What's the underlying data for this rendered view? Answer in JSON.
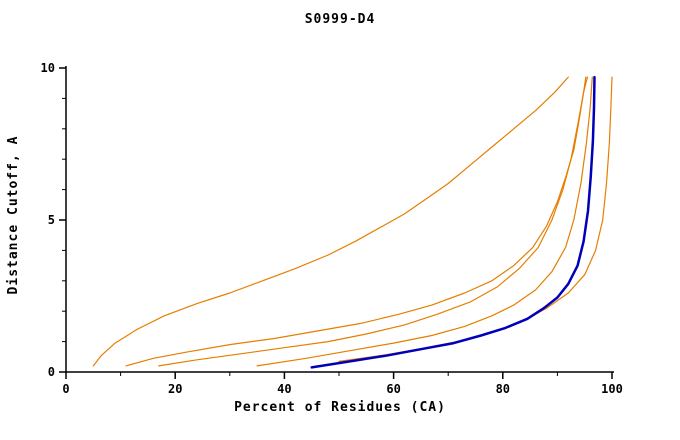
{
  "chart_data": {
    "type": "line",
    "title": "S0999-D4",
    "xlabel": "Percent of Residues (CA)",
    "ylabel": "Distance Cutoff, A",
    "xlim": [
      0,
      100
    ],
    "ylim": [
      0,
      10
    ],
    "x_ticks": [
      0,
      20,
      40,
      60,
      80,
      100
    ],
    "y_ticks": [
      0,
      5,
      10
    ],
    "x_minor_step": 10,
    "y_minor_step": 1,
    "grid": false,
    "legend": "none",
    "axis_color": "#000000",
    "background": "#ffffff",
    "colors": {
      "model_highlight": "#0000bb",
      "other_models": "#e67e00"
    },
    "series": [
      {
        "name": "orange-curve-1",
        "color": "#e67e00",
        "width": 1.2,
        "points": [
          [
            5,
            0.2
          ],
          [
            6.5,
            0.55
          ],
          [
            9,
            0.95
          ],
          [
            13,
            1.4
          ],
          [
            18,
            1.85
          ],
          [
            24,
            2.25
          ],
          [
            30,
            2.6
          ],
          [
            36,
            3.0
          ],
          [
            42,
            3.4
          ],
          [
            48,
            3.85
          ],
          [
            53,
            4.3
          ],
          [
            58,
            4.8
          ],
          [
            62,
            5.2
          ],
          [
            66,
            5.7
          ],
          [
            70,
            6.2
          ],
          [
            74,
            6.8
          ],
          [
            78,
            7.4
          ],
          [
            82,
            8.0
          ],
          [
            86,
            8.6
          ],
          [
            89.5,
            9.2
          ],
          [
            92,
            9.7
          ]
        ]
      },
      {
        "name": "orange-curve-2",
        "color": "#e67e00",
        "width": 1.2,
        "points": [
          [
            11,
            0.2
          ],
          [
            16,
            0.45
          ],
          [
            22,
            0.65
          ],
          [
            30,
            0.9
          ],
          [
            38,
            1.1
          ],
          [
            46,
            1.35
          ],
          [
            54,
            1.6
          ],
          [
            61,
            1.9
          ],
          [
            67,
            2.2
          ],
          [
            73,
            2.6
          ],
          [
            78,
            3.0
          ],
          [
            82,
            3.5
          ],
          [
            85.5,
            4.1
          ],
          [
            88,
            4.8
          ],
          [
            90,
            5.6
          ],
          [
            91.5,
            6.4
          ],
          [
            93,
            7.3
          ],
          [
            94,
            8.3
          ],
          [
            94.8,
            9.2
          ],
          [
            95.2,
            9.7
          ]
        ]
      },
      {
        "name": "orange-curve-3",
        "color": "#e67e00",
        "width": 1.2,
        "points": [
          [
            17,
            0.2
          ],
          [
            24,
            0.4
          ],
          [
            32,
            0.6
          ],
          [
            40,
            0.8
          ],
          [
            48,
            1.0
          ],
          [
            55,
            1.25
          ],
          [
            62,
            1.55
          ],
          [
            68,
            1.9
          ],
          [
            74,
            2.3
          ],
          [
            79,
            2.8
          ],
          [
            83,
            3.4
          ],
          [
            86.5,
            4.1
          ],
          [
            89,
            5.0
          ],
          [
            91,
            6.0
          ],
          [
            92.5,
            7.0
          ],
          [
            93.8,
            8.2
          ],
          [
            94.8,
            9.2
          ],
          [
            95.5,
            9.7
          ]
        ]
      },
      {
        "name": "orange-curve-4",
        "color": "#e67e00",
        "width": 1.2,
        "points": [
          [
            35,
            0.2
          ],
          [
            44,
            0.45
          ],
          [
            52,
            0.7
          ],
          [
            60,
            0.95
          ],
          [
            67,
            1.2
          ],
          [
            73,
            1.5
          ],
          [
            78,
            1.85
          ],
          [
            82,
            2.2
          ],
          [
            86,
            2.7
          ],
          [
            89,
            3.3
          ],
          [
            91.5,
            4.1
          ],
          [
            93,
            5.0
          ],
          [
            94.3,
            6.2
          ],
          [
            95.3,
            7.5
          ],
          [
            96,
            8.7
          ],
          [
            96.4,
            9.7
          ]
        ]
      },
      {
        "name": "orange-curve-5",
        "color": "#e67e00",
        "width": 1.2,
        "points": [
          [
            50,
            0.35
          ],
          [
            58,
            0.55
          ],
          [
            66,
            0.8
          ],
          [
            73,
            1.05
          ],
          [
            79,
            1.35
          ],
          [
            84,
            1.7
          ],
          [
            88,
            2.1
          ],
          [
            92,
            2.6
          ],
          [
            95,
            3.2
          ],
          [
            97,
            4.0
          ],
          [
            98.3,
            5.0
          ],
          [
            99,
            6.2
          ],
          [
            99.5,
            7.5
          ],
          [
            99.8,
            8.7
          ],
          [
            100,
            9.7
          ]
        ]
      },
      {
        "name": "highlighted-model-curve",
        "color": "#0000bb",
        "width": 2.5,
        "points": [
          [
            45,
            0.15
          ],
          [
            52,
            0.35
          ],
          [
            59,
            0.55
          ],
          [
            65,
            0.75
          ],
          [
            71,
            0.95
          ],
          [
            76,
            1.2
          ],
          [
            80.5,
            1.45
          ],
          [
            84.5,
            1.75
          ],
          [
            87.5,
            2.1
          ],
          [
            90,
            2.45
          ],
          [
            92,
            2.9
          ],
          [
            93.7,
            3.5
          ],
          [
            94.8,
            4.3
          ],
          [
            95.6,
            5.3
          ],
          [
            96.1,
            6.4
          ],
          [
            96.5,
            7.6
          ],
          [
            96.7,
            8.7
          ],
          [
            96.8,
            9.7
          ]
        ]
      }
    ]
  }
}
